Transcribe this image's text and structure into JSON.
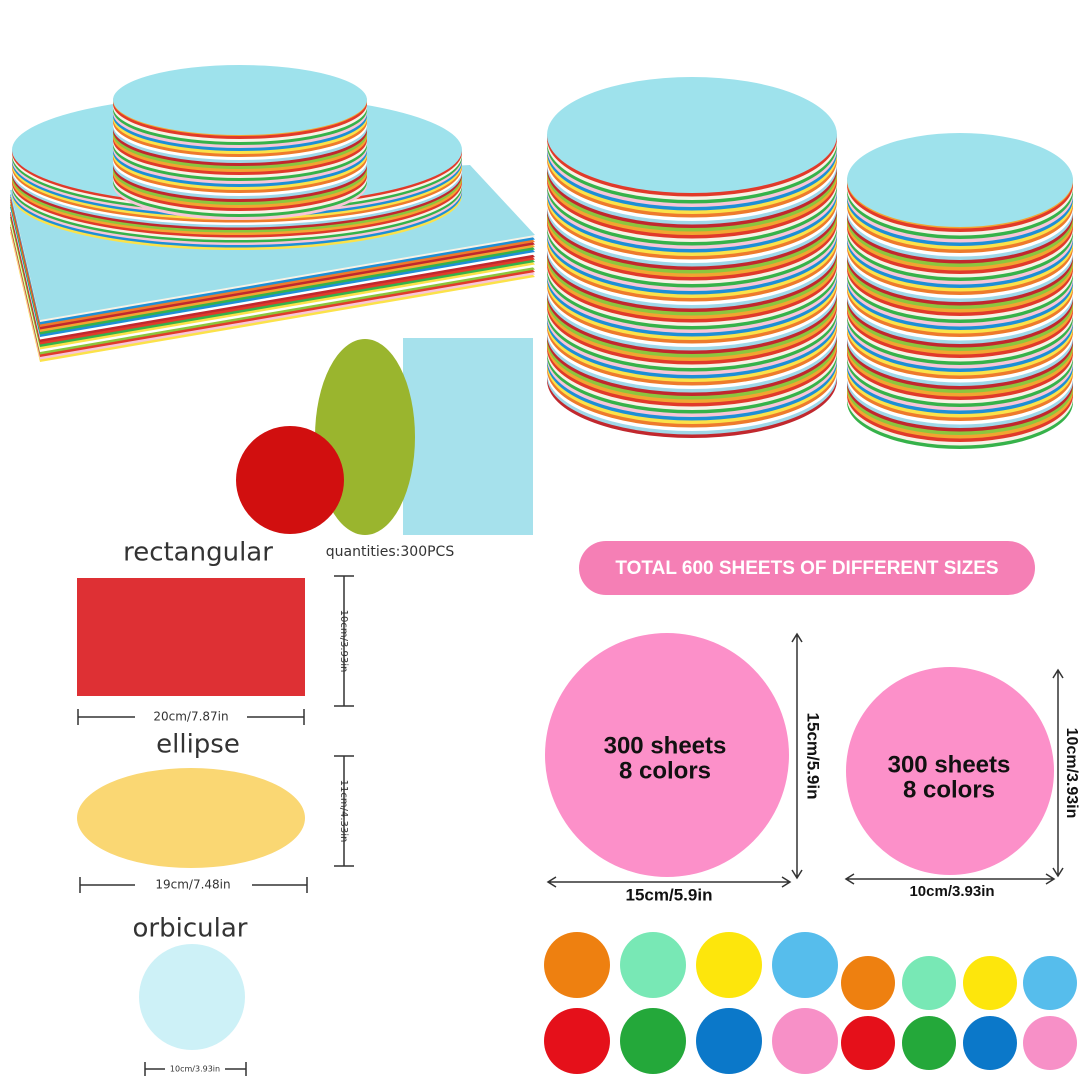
{
  "left_panel": {
    "rectangular": {
      "label": "rectangular",
      "height": "10cm/3.93in",
      "width": "20cm/7.87in"
    },
    "quantity": "quantities:300PCS",
    "ellipse": {
      "label": "ellipse",
      "height": "11cm/4.33in",
      "width": "19cm/7.48in"
    },
    "orbicular": {
      "label": "orbicular",
      "width": "10cm/3.93in"
    }
  },
  "right_panel": {
    "banner": "TOTAL 600 SHEETS OF DIFFERENT SIZES",
    "large_circle": {
      "line1": "300 sheets",
      "line2": "8 colors",
      "height": "15cm/5.9in",
      "width": "15cm/5.9in"
    },
    "small_circle": {
      "line1": "300 sheets",
      "line2": "8 colors",
      "height": "10cm/3.93in",
      "width": "10cm/3.93in"
    }
  }
}
